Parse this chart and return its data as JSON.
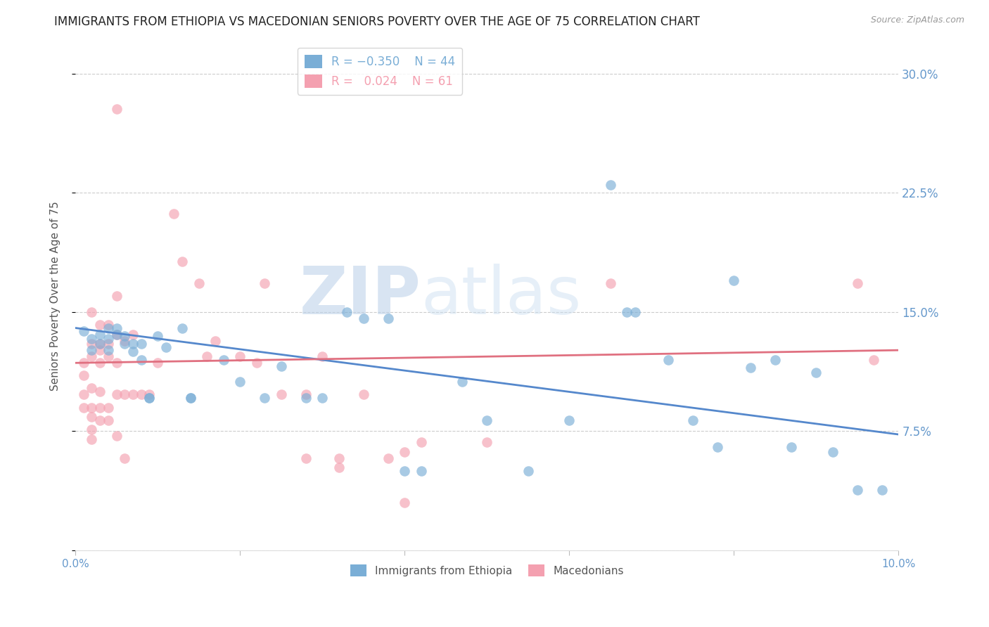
{
  "title": "IMMIGRANTS FROM ETHIOPIA VS MACEDONIAN SENIORS POVERTY OVER THE AGE OF 75 CORRELATION CHART",
  "source": "Source: ZipAtlas.com",
  "ylabel": "Seniors Poverty Over the Age of 75",
  "x_min": 0.0,
  "x_max": 0.1,
  "y_min": 0.0,
  "y_max": 0.32,
  "x_ticks": [
    0.0,
    0.02,
    0.04,
    0.06,
    0.08,
    0.1
  ],
  "x_tick_labels": [
    "0.0%",
    "",
    "",
    "",
    "",
    "10.0%"
  ],
  "y_ticks": [
    0.0,
    0.075,
    0.15,
    0.225,
    0.3
  ],
  "y_tick_labels_right": [
    "",
    "7.5%",
    "15.0%",
    "22.5%",
    "30.0%"
  ],
  "legend_label1": "Immigrants from Ethiopia",
  "legend_label2": "Macedonians",
  "color_blue": "#7aaed6",
  "color_pink": "#f4a0b0",
  "line_color_blue": "#5588cc",
  "line_color_pink": "#e07080",
  "watermark_zip": "ZIP",
  "watermark_atlas": "atlas",
  "blue_scatter": [
    [
      0.001,
      0.138
    ],
    [
      0.002,
      0.133
    ],
    [
      0.002,
      0.126
    ],
    [
      0.003,
      0.136
    ],
    [
      0.003,
      0.13
    ],
    [
      0.004,
      0.14
    ],
    [
      0.004,
      0.133
    ],
    [
      0.004,
      0.126
    ],
    [
      0.005,
      0.136
    ],
    [
      0.005,
      0.14
    ],
    [
      0.006,
      0.13
    ],
    [
      0.006,
      0.135
    ],
    [
      0.007,
      0.13
    ],
    [
      0.007,
      0.125
    ],
    [
      0.008,
      0.13
    ],
    [
      0.008,
      0.12
    ],
    [
      0.009,
      0.096
    ],
    [
      0.009,
      0.096
    ],
    [
      0.01,
      0.135
    ],
    [
      0.011,
      0.128
    ],
    [
      0.013,
      0.14
    ],
    [
      0.014,
      0.096
    ],
    [
      0.014,
      0.096
    ],
    [
      0.018,
      0.12
    ],
    [
      0.02,
      0.106
    ],
    [
      0.023,
      0.096
    ],
    [
      0.025,
      0.116
    ],
    [
      0.028,
      0.096
    ],
    [
      0.03,
      0.096
    ],
    [
      0.033,
      0.15
    ],
    [
      0.035,
      0.146
    ],
    [
      0.038,
      0.146
    ],
    [
      0.04,
      0.05
    ],
    [
      0.042,
      0.05
    ],
    [
      0.047,
      0.106
    ],
    [
      0.05,
      0.082
    ],
    [
      0.055,
      0.05
    ],
    [
      0.06,
      0.082
    ],
    [
      0.065,
      0.23
    ],
    [
      0.067,
      0.15
    ],
    [
      0.068,
      0.15
    ],
    [
      0.072,
      0.12
    ],
    [
      0.075,
      0.082
    ],
    [
      0.078,
      0.065
    ],
    [
      0.08,
      0.17
    ],
    [
      0.082,
      0.115
    ],
    [
      0.085,
      0.12
    ],
    [
      0.087,
      0.065
    ],
    [
      0.09,
      0.112
    ],
    [
      0.092,
      0.062
    ],
    [
      0.095,
      0.038
    ],
    [
      0.098,
      0.038
    ]
  ],
  "pink_scatter": [
    [
      0.001,
      0.118
    ],
    [
      0.001,
      0.11
    ],
    [
      0.001,
      0.098
    ],
    [
      0.001,
      0.09
    ],
    [
      0.002,
      0.15
    ],
    [
      0.002,
      0.13
    ],
    [
      0.002,
      0.122
    ],
    [
      0.002,
      0.102
    ],
    [
      0.002,
      0.09
    ],
    [
      0.002,
      0.084
    ],
    [
      0.002,
      0.076
    ],
    [
      0.002,
      0.07
    ],
    [
      0.003,
      0.142
    ],
    [
      0.003,
      0.13
    ],
    [
      0.003,
      0.126
    ],
    [
      0.003,
      0.118
    ],
    [
      0.003,
      0.1
    ],
    [
      0.003,
      0.09
    ],
    [
      0.003,
      0.082
    ],
    [
      0.004,
      0.142
    ],
    [
      0.004,
      0.13
    ],
    [
      0.004,
      0.122
    ],
    [
      0.004,
      0.09
    ],
    [
      0.004,
      0.082
    ],
    [
      0.005,
      0.278
    ],
    [
      0.005,
      0.16
    ],
    [
      0.005,
      0.136
    ],
    [
      0.005,
      0.118
    ],
    [
      0.005,
      0.098
    ],
    [
      0.005,
      0.072
    ],
    [
      0.006,
      0.132
    ],
    [
      0.006,
      0.098
    ],
    [
      0.006,
      0.058
    ],
    [
      0.007,
      0.136
    ],
    [
      0.007,
      0.098
    ],
    [
      0.008,
      0.098
    ],
    [
      0.009,
      0.098
    ],
    [
      0.01,
      0.118
    ],
    [
      0.012,
      0.212
    ],
    [
      0.013,
      0.182
    ],
    [
      0.015,
      0.168
    ],
    [
      0.016,
      0.122
    ],
    [
      0.017,
      0.132
    ],
    [
      0.02,
      0.122
    ],
    [
      0.022,
      0.118
    ],
    [
      0.023,
      0.168
    ],
    [
      0.025,
      0.098
    ],
    [
      0.028,
      0.098
    ],
    [
      0.028,
      0.058
    ],
    [
      0.03,
      0.122
    ],
    [
      0.032,
      0.058
    ],
    [
      0.032,
      0.052
    ],
    [
      0.035,
      0.098
    ],
    [
      0.038,
      0.058
    ],
    [
      0.04,
      0.062
    ],
    [
      0.04,
      0.03
    ],
    [
      0.042,
      0.068
    ],
    [
      0.05,
      0.068
    ],
    [
      0.065,
      0.168
    ],
    [
      0.095,
      0.168
    ],
    [
      0.097,
      0.12
    ]
  ],
  "blue_line_x": [
    0.0,
    0.1
  ],
  "blue_line_y": [
    0.14,
    0.073
  ],
  "pink_line_x": [
    0.0,
    0.1
  ],
  "pink_line_y": [
    0.118,
    0.126
  ],
  "background_color": "#ffffff",
  "grid_color": "#cccccc",
  "axis_color": "#6699cc",
  "title_color": "#222222",
  "title_fontsize": 12,
  "axis_label_color": "#555555"
}
